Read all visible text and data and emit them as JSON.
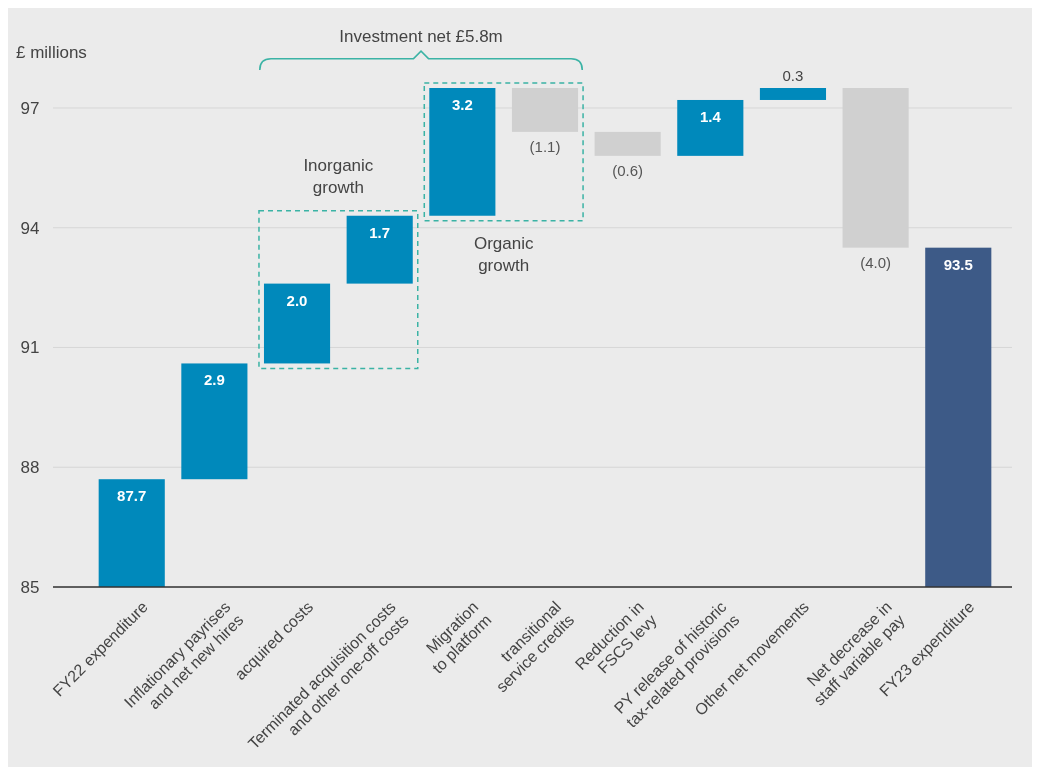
{
  "chart_data": {
    "type": "bar",
    "ylabel": "£ millions",
    "categories": [
      "FY22 expenditure",
      "Inflationary payrises and net new hires",
      "acquired costs",
      "Terminated acquisition costs and other one-off costs",
      "Migration to platform",
      "transitional service credits",
      "Reduction in FSCS levy",
      "PY release of historic tax-related provisions",
      "Other net movements",
      "Net decrease in staff variable pay",
      "FY23 expenditure"
    ],
    "values": [
      87.7,
      2.9,
      2.0,
      1.7,
      3.2,
      -1.1,
      -0.6,
      1.4,
      0.3,
      -4.0,
      93.5
    ],
    "base": [
      null,
      87.7,
      90.6,
      92.6,
      94.3,
      97.5,
      96.4,
      95.8,
      97.2,
      97.5,
      null
    ],
    "colors": [
      "#0089bb",
      "#0089bb",
      "#0089bb",
      "#0089bb",
      "#0089bb",
      "#d0d0d0",
      "#d0d0d0",
      "#0089bb",
      "#0089bb",
      "#d0d0d0",
      "#3d5a87"
    ],
    "value_labels": [
      "87.7",
      "2.9",
      "2.0",
      "1.7",
      "3.2",
      "(1.1)",
      "(0.6)",
      "1.4",
      "0.3",
      "(4.0)",
      "93.5"
    ],
    "ylim": [
      85,
      97.5
    ],
    "yticks": [
      85,
      88,
      91,
      94,
      97
    ],
    "grid": "y",
    "annotations": [
      "Investment net £5.8m",
      "Inorganic growth",
      "Organic growth"
    ]
  }
}
